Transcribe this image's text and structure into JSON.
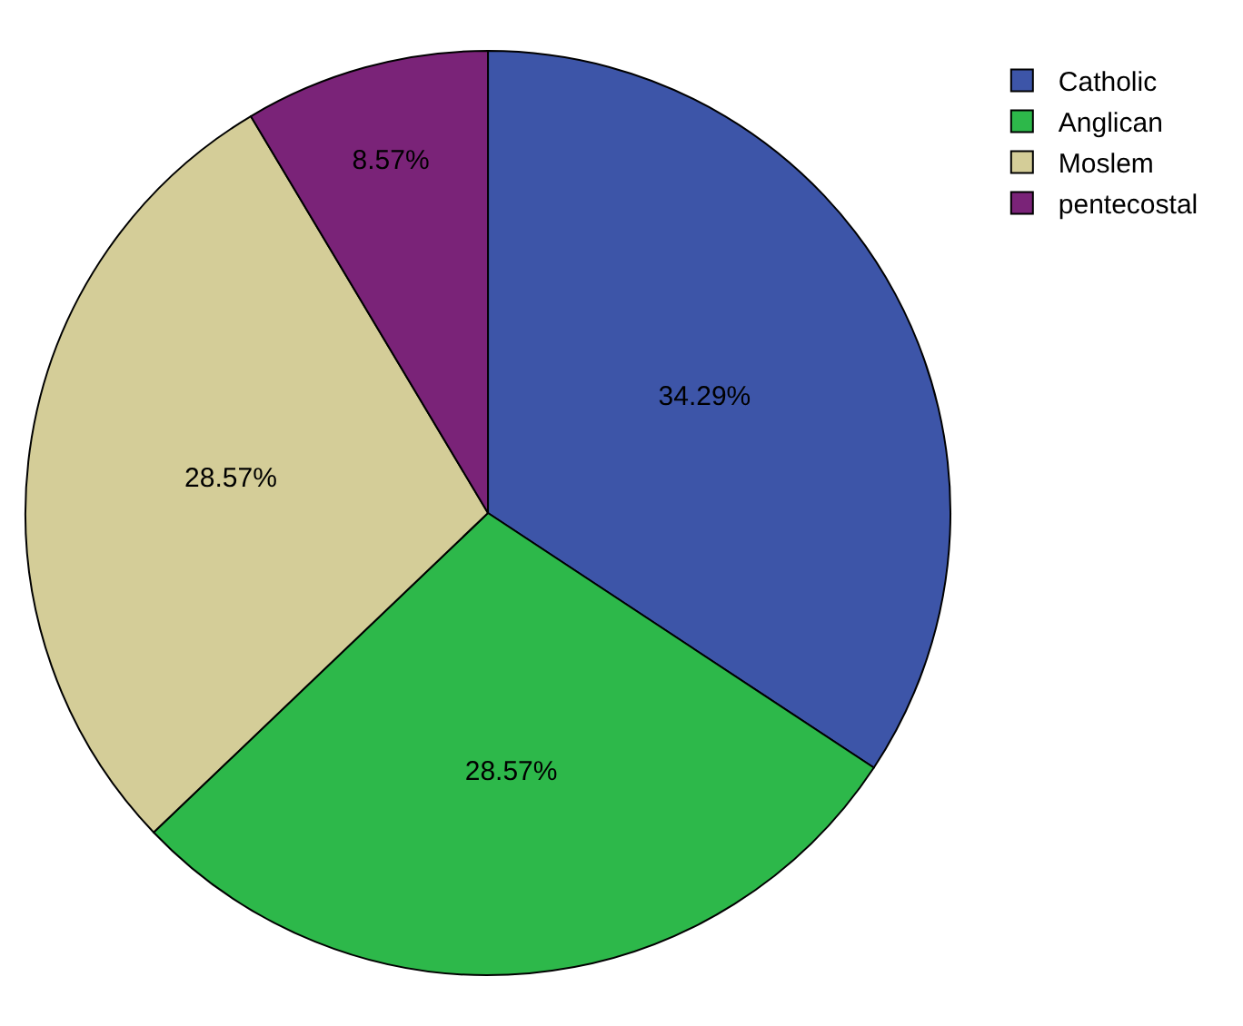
{
  "chart_data": {
    "type": "pie",
    "categories": [
      "Catholic",
      "Anglican",
      "Moslem",
      "pentecostal"
    ],
    "values": [
      34.29,
      28.57,
      28.57,
      8.57
    ],
    "colors": [
      "#3d55a8",
      "#2db84a",
      "#d4cd98",
      "#7a2378"
    ],
    "value_labels": [
      "34.29%",
      "28.57%",
      "28.57%",
      "8.57%"
    ],
    "legend": "top right"
  }
}
